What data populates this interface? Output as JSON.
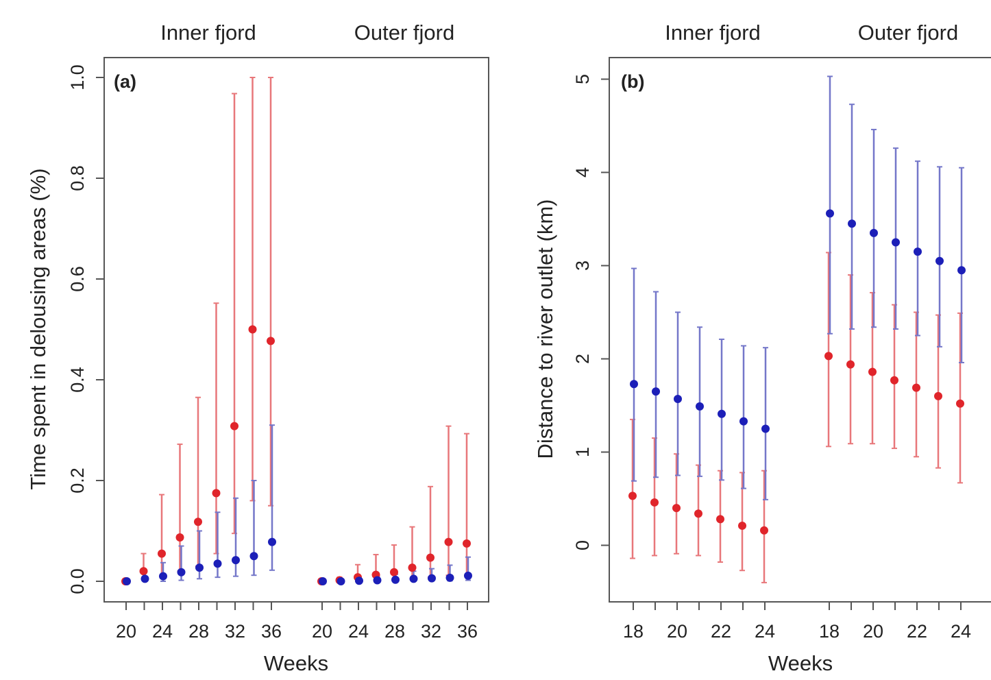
{
  "colors": {
    "red": "#e0252b",
    "blue": "#1c1fb8",
    "red_bar": "#e8777a",
    "blue_bar": "#7477c9",
    "axis": "#555555"
  },
  "chart_data": [
    {
      "type": "scatter",
      "panel_label": "(a)",
      "group_labels": [
        "Inner fjord",
        "Outer fjord"
      ],
      "xlabel": "Weeks",
      "ylabel": "Time spent in delousing areas (%)",
      "ylim": [
        0.0,
        1.0
      ],
      "yticks": [
        "0.0",
        "0.2",
        "0.4",
        "0.6",
        "0.8",
        "1.0"
      ],
      "xtick_labels": [
        "20",
        "24",
        "28",
        "32",
        "36"
      ],
      "groups": [
        {
          "name": "Inner fjord",
          "weeks": [
            20,
            22,
            24,
            26,
            28,
            30,
            32,
            34,
            36
          ],
          "series": [
            {
              "color": "red",
              "y": [
                0.0,
                0.02,
                0.055,
                0.087,
                0.118,
                0.175,
                0.308,
                0.5,
                0.477
              ],
              "lower": [
                0.0,
                0.005,
                0.01,
                0.02,
                0.03,
                0.055,
                0.095,
                0.16,
                0.15
              ],
              "upper": [
                0.0,
                0.055,
                0.172,
                0.272,
                0.365,
                0.552,
                0.968,
                1.0,
                1.0
              ]
            },
            {
              "color": "blue",
              "y": [
                0.0,
                0.005,
                0.01,
                0.018,
                0.027,
                0.035,
                0.042,
                0.05,
                0.078
              ],
              "lower": [
                0.0,
                0.0,
                0.0,
                0.002,
                0.005,
                0.008,
                0.01,
                0.012,
                0.022
              ],
              "upper": [
                0.0,
                0.02,
                0.037,
                0.07,
                0.1,
                0.137,
                0.165,
                0.2,
                0.31
              ]
            }
          ]
        },
        {
          "name": "Outer fjord",
          "weeks": [
            20,
            22,
            24,
            26,
            28,
            30,
            32,
            34,
            36
          ],
          "series": [
            {
              "color": "red",
              "y": [
                0.0,
                0.002,
                0.008,
                0.013,
                0.018,
                0.027,
                0.047,
                0.078,
                0.075
              ],
              "lower": [
                0.0,
                0.0,
                0.0,
                0.002,
                0.003,
                0.005,
                0.008,
                0.012,
                0.012
              ],
              "upper": [
                0.0,
                0.008,
                0.033,
                0.053,
                0.072,
                0.108,
                0.188,
                0.308,
                0.293
              ]
            },
            {
              "color": "blue",
              "y": [
                0.0,
                0.0,
                0.001,
                0.002,
                0.003,
                0.005,
                0.006,
                0.007,
                0.011
              ],
              "lower": [
                0.0,
                0.0,
                0.0,
                0.0,
                0.0,
                0.0,
                0.001,
                0.001,
                0.002
              ],
              "upper": [
                0.0,
                0.002,
                0.005,
                0.01,
                0.014,
                0.02,
                0.025,
                0.032,
                0.048
              ]
            }
          ]
        }
      ]
    },
    {
      "type": "scatter",
      "panel_label": "(b)",
      "group_labels": [
        "Inner fjord",
        "Outer fjord"
      ],
      "xlabel": "Weeks",
      "ylabel": "Distance to river outlet (km)",
      "ylim": [
        -0.6,
        5.25
      ],
      "yticks": [
        "0",
        "1",
        "2",
        "3",
        "4",
        "5"
      ],
      "xtick_labels": [
        "18",
        "20",
        "22",
        "24"
      ],
      "groups": [
        {
          "name": "Inner fjord",
          "weeks": [
            18,
            19,
            20,
            21,
            22,
            23,
            24
          ],
          "series": [
            {
              "color": "red",
              "y": [
                0.53,
                0.46,
                0.4,
                0.34,
                0.28,
                0.21,
                0.16
              ],
              "lower": [
                -0.14,
                -0.11,
                -0.09,
                -0.11,
                -0.18,
                -0.27,
                -0.4
              ],
              "upper": [
                1.35,
                1.15,
                0.98,
                0.86,
                0.8,
                0.78,
                0.8
              ]
            },
            {
              "color": "blue",
              "y": [
                1.73,
                1.65,
                1.57,
                1.49,
                1.41,
                1.33,
                1.25
              ],
              "lower": [
                0.69,
                0.73,
                0.75,
                0.74,
                0.7,
                0.61,
                0.49
              ],
              "upper": [
                2.97,
                2.72,
                2.5,
                2.34,
                2.21,
                2.14,
                2.12
              ]
            }
          ]
        },
        {
          "name": "Outer fjord",
          "weeks": [
            18,
            19,
            20,
            21,
            22,
            23,
            24
          ],
          "series": [
            {
              "color": "red",
              "y": [
                2.03,
                1.94,
                1.86,
                1.77,
                1.69,
                1.6,
                1.52
              ],
              "lower": [
                1.06,
                1.09,
                1.09,
                1.04,
                0.95,
                0.83,
                0.67
              ],
              "upper": [
                3.14,
                2.9,
                2.71,
                2.58,
                2.5,
                2.47,
                2.49
              ]
            },
            {
              "color": "blue",
              "y": [
                3.56,
                3.45,
                3.35,
                3.25,
                3.15,
                3.05,
                2.95
              ],
              "lower": [
                2.27,
                2.32,
                2.34,
                2.32,
                2.25,
                2.13,
                1.96
              ],
              "upper": [
                5.03,
                4.73,
                4.46,
                4.26,
                4.12,
                4.06,
                4.05
              ]
            }
          ]
        }
      ]
    }
  ]
}
